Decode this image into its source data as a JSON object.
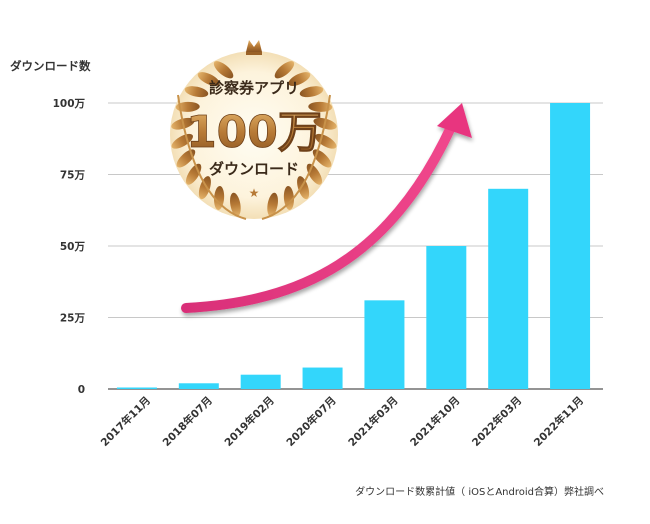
{
  "chart_data": {
    "type": "bar",
    "ylabel": "ダウンロード数",
    "categories": [
      "2017年11月",
      "2018年07月",
      "2019年02月",
      "2020年07月",
      "2021年03月",
      "2021年10月",
      "2022年03月",
      "2022年11月"
    ],
    "values": [
      0.5,
      2,
      5,
      7.5,
      31,
      50,
      70,
      100
    ],
    "ylim": [
      0,
      100
    ],
    "yticks": [
      0,
      25,
      50,
      75,
      100
    ],
    "ytick_labels": [
      "0",
      "25万",
      "50万",
      "75万",
      "100万"
    ],
    "grid": true,
    "bar_color": "#33d6fb",
    "arrow_color": "#e8357f",
    "source_note": "ダウンロード数累計値（ iOSとAndroid合算）弊社調べ"
  },
  "badge": {
    "line1": "診察券アプリ",
    "line2": "100万",
    "line3": "ダウンロード",
    "gold": "#c8924a"
  }
}
